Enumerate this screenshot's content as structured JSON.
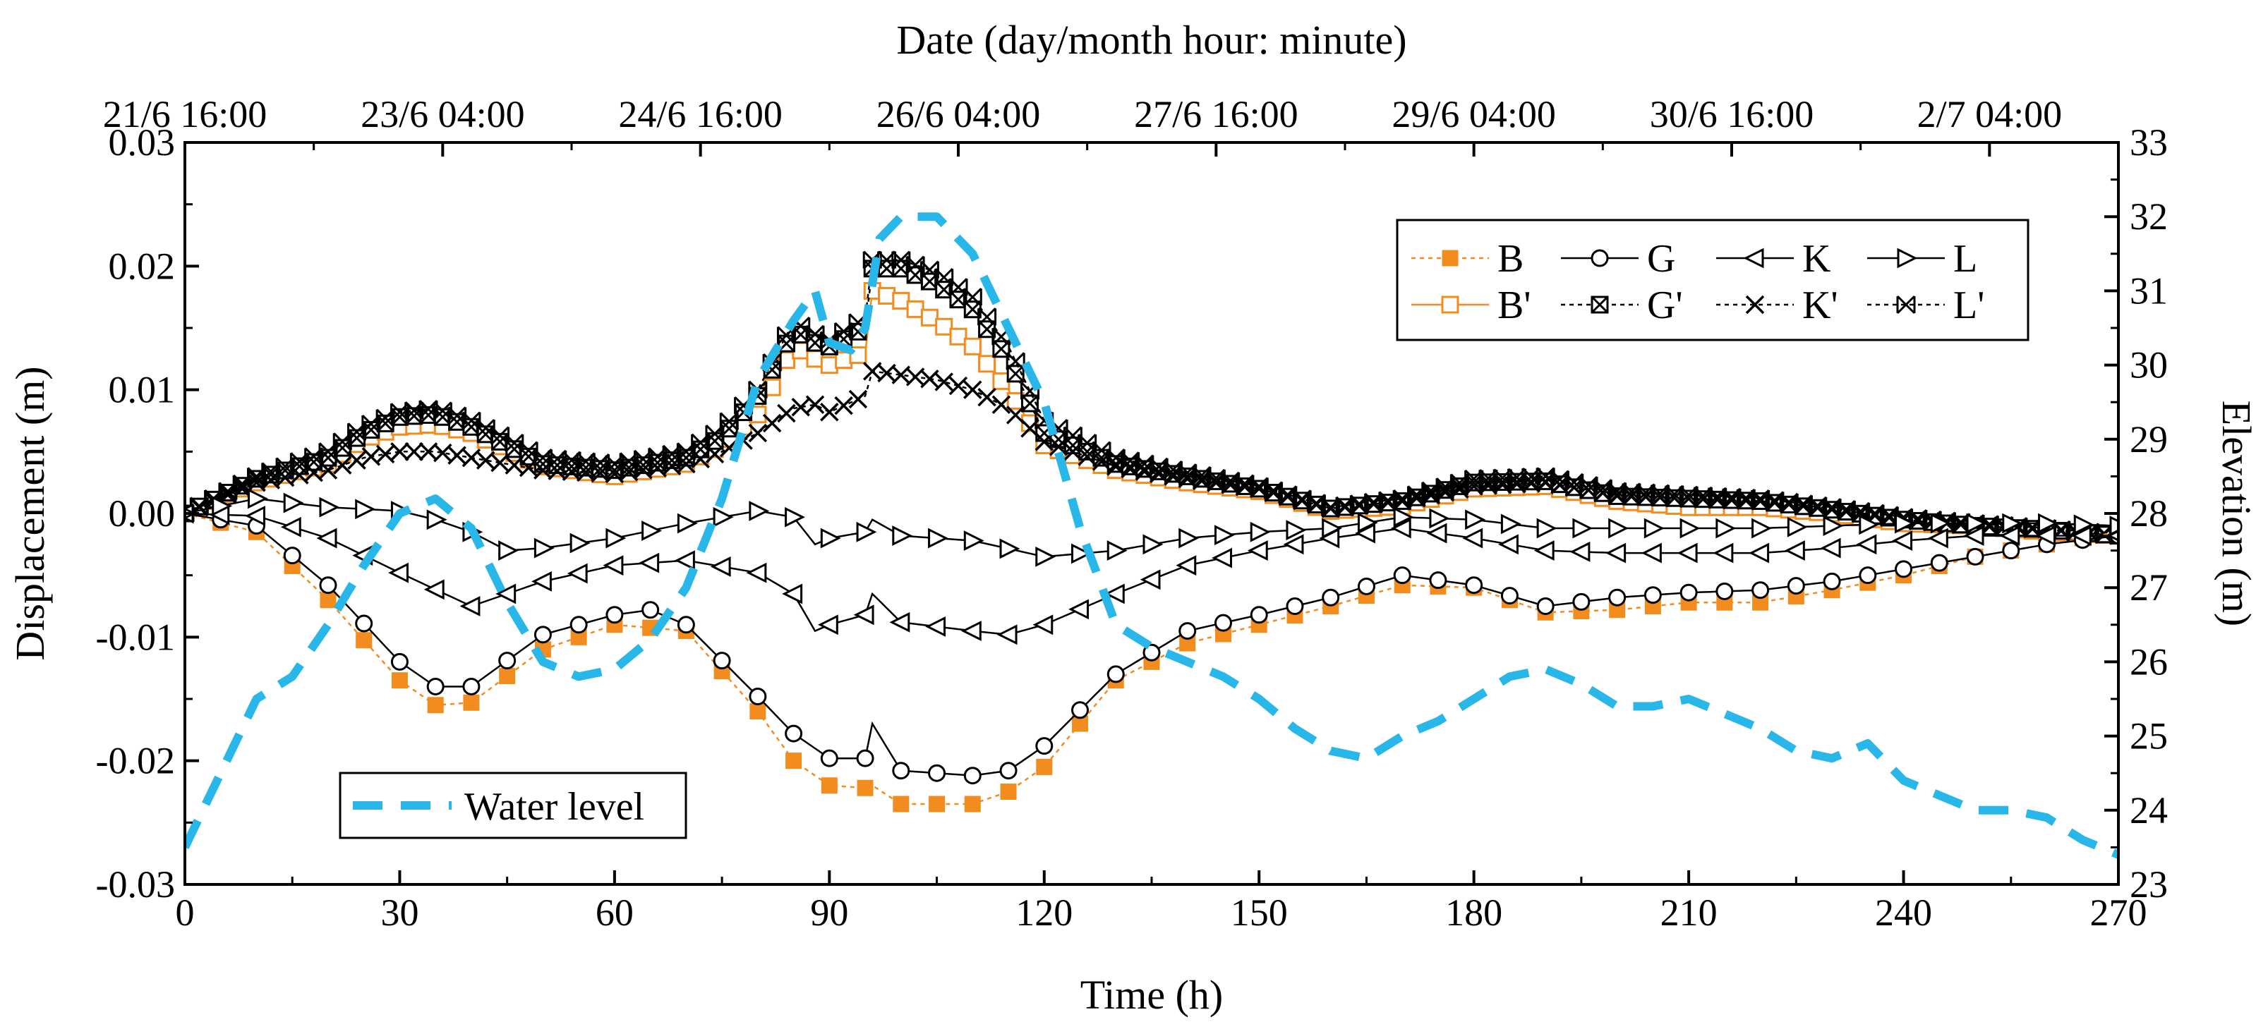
{
  "chart_data": {
    "type": "line",
    "title": "",
    "xlabel": "Time (h)",
    "ylabel": "Displacement (m)",
    "y2label": "Elevation (m)",
    "top_axis_title": "Date (day/month hour: minute)",
    "xlim": [
      0,
      270
    ],
    "ylim": [
      -0.03,
      0.03
    ],
    "y2lim": [
      23,
      33
    ],
    "x_ticks": [
      "0",
      "30",
      "60",
      "90",
      "120",
      "150",
      "180",
      "210",
      "240",
      "270"
    ],
    "y_ticks": [
      "-0.03",
      "-0.02",
      "-0.01",
      "0.00",
      "0.01",
      "0.02",
      "0.03"
    ],
    "y2_ticks": [
      "23",
      "24",
      "25",
      "26",
      "27",
      "28",
      "29",
      "30",
      "31",
      "32",
      "33"
    ],
    "top_ticks": [
      "21/6 16:00",
      "23/6 04:00",
      "24/6 16:00",
      "26/6 04:00",
      "27/6 16:00",
      "29/6 04:00",
      "30/6 16:00",
      "2/7 04:00"
    ],
    "grid": false,
    "legend_main": {
      "position": "top-right",
      "entries": [
        "B",
        "G",
        "K",
        "L",
        "B'",
        "G'",
        "K'",
        "L'"
      ]
    },
    "legend_water": {
      "position": "bottom-left",
      "entries": [
        "Water level"
      ]
    },
    "colors": {
      "orange": "#f28c1e",
      "black": "#000000",
      "water": "#29b6e8"
    },
    "series": [
      {
        "name": "B",
        "axis": "left",
        "x": [
          0,
          10,
          20,
          30,
          35,
          40,
          50,
          60,
          70,
          80,
          85,
          90,
          95,
          96,
          100,
          110,
          115,
          120,
          130,
          140,
          150,
          160,
          170,
          180,
          190,
          200,
          210,
          220,
          230,
          240,
          250,
          260,
          270
        ],
        "y": [
          0,
          -0.0015,
          -0.007,
          -0.0135,
          -0.0155,
          -0.0153,
          -0.011,
          -0.009,
          -0.0095,
          -0.016,
          -0.02,
          -0.022,
          -0.0222,
          -0.022,
          -0.0235,
          -0.0235,
          -0.0225,
          -0.0205,
          -0.0135,
          -0.0105,
          -0.009,
          -0.0075,
          -0.0058,
          -0.006,
          -0.008,
          -0.0078,
          -0.0072,
          -0.0072,
          -0.0062,
          -0.005,
          -0.0035,
          -0.0025,
          -0.0015
        ]
      },
      {
        "name": "G",
        "axis": "left",
        "x": [
          0,
          10,
          20,
          30,
          35,
          40,
          50,
          60,
          65,
          70,
          80,
          85,
          90,
          95,
          96,
          100,
          110,
          115,
          120,
          130,
          140,
          150,
          160,
          170,
          180,
          190,
          200,
          210,
          220,
          230,
          240,
          250,
          260,
          270
        ],
        "y": [
          0,
          -0.001,
          -0.0058,
          -0.012,
          -0.014,
          -0.014,
          -0.0098,
          -0.0082,
          -0.0078,
          -0.009,
          -0.0148,
          -0.0178,
          -0.0198,
          -0.0198,
          -0.017,
          -0.0208,
          -0.0212,
          -0.0208,
          -0.0188,
          -0.013,
          -0.0095,
          -0.0082,
          -0.0068,
          -0.005,
          -0.0058,
          -0.0075,
          -0.0068,
          -0.0064,
          -0.0062,
          -0.0055,
          -0.0045,
          -0.0035,
          -0.0025,
          -0.0018
        ]
      },
      {
        "name": "K",
        "axis": "left",
        "x": [
          0,
          10,
          20,
          30,
          40,
          50,
          60,
          70,
          80,
          85,
          88,
          90,
          95,
          96,
          100,
          110,
          115,
          120,
          130,
          140,
          150,
          160,
          170,
          180,
          190,
          200,
          210,
          220,
          230,
          240,
          250,
          260,
          270
        ],
        "y": [
          0,
          -0.0002,
          -0.002,
          -0.0048,
          -0.0075,
          -0.0055,
          -0.0042,
          -0.0038,
          -0.0048,
          -0.0065,
          -0.0095,
          -0.009,
          -0.0082,
          -0.0065,
          -0.0088,
          -0.0095,
          -0.0098,
          -0.009,
          -0.0065,
          -0.0042,
          -0.003,
          -0.002,
          -0.0012,
          -0.002,
          -0.003,
          -0.0032,
          -0.0032,
          -0.0032,
          -0.0028,
          -0.0022,
          -0.0018,
          -0.0018,
          -0.0018
        ]
      },
      {
        "name": "L",
        "axis": "left",
        "x": [
          0,
          10,
          20,
          30,
          35,
          40,
          45,
          50,
          60,
          70,
          80,
          85,
          88,
          90,
          95,
          96,
          100,
          110,
          120,
          130,
          140,
          150,
          160,
          170,
          180,
          190,
          200,
          210,
          220,
          230,
          240,
          250,
          260,
          270
        ],
        "y": [
          0,
          0.0012,
          0.0005,
          0.0002,
          -0.0005,
          -0.0015,
          -0.003,
          -0.0028,
          -0.002,
          -0.0008,
          0.0002,
          -0.0003,
          -0.0025,
          -0.002,
          -0.0015,
          -0.0005,
          -0.0018,
          -0.0022,
          -0.0035,
          -0.003,
          -0.002,
          -0.0015,
          -0.0012,
          -0.0003,
          -0.0005,
          -0.0012,
          -0.0012,
          -0.0012,
          -0.0012,
          -0.001,
          -0.0008,
          -0.0008,
          -0.0008,
          -0.001
        ]
      },
      {
        "name": "B'",
        "axis": "left",
        "x": [
          0,
          10,
          20,
          25,
          30,
          35,
          40,
          50,
          60,
          70,
          75,
          80,
          85,
          88,
          90,
          95,
          96,
          100,
          105,
          110,
          115,
          120,
          130,
          140,
          150,
          160,
          170,
          180,
          190,
          200,
          210,
          220,
          230,
          240,
          250,
          260,
          270
        ],
        "y": [
          0,
          0.0025,
          0.004,
          0.006,
          0.007,
          0.0072,
          0.0065,
          0.0038,
          0.003,
          0.004,
          0.0055,
          0.008,
          0.0135,
          0.0125,
          0.012,
          0.013,
          0.018,
          0.0172,
          0.0155,
          0.0135,
          0.01,
          0.0055,
          0.0035,
          0.0025,
          0.0018,
          0.0002,
          0.0006,
          0.002,
          0.0022,
          0.001,
          0.0005,
          0.0005,
          0.0,
          -0.0008,
          -0.001,
          -0.0015,
          -0.0018
        ]
      },
      {
        "name": "G'",
        "axis": "left",
        "x": [
          0,
          10,
          20,
          25,
          30,
          35,
          40,
          50,
          60,
          70,
          75,
          80,
          85,
          88,
          90,
          95,
          96,
          100,
          105,
          110,
          115,
          120,
          130,
          140,
          150,
          160,
          170,
          180,
          190,
          200,
          210,
          220,
          230,
          240,
          250,
          260,
          270
        ],
        "y": [
          0,
          0.0028,
          0.0045,
          0.0065,
          0.0078,
          0.008,
          0.007,
          0.004,
          0.0035,
          0.0045,
          0.0062,
          0.0095,
          0.0148,
          0.0138,
          0.0135,
          0.015,
          0.0198,
          0.0198,
          0.0185,
          0.0165,
          0.0125,
          0.0065,
          0.004,
          0.003,
          0.002,
          0.0004,
          0.001,
          0.0025,
          0.0026,
          0.0014,
          0.0012,
          0.001,
          0.0003,
          -0.0005,
          -0.001,
          -0.0013,
          -0.0018
        ]
      },
      {
        "name": "K'",
        "axis": "left",
        "x": [
          0,
          10,
          20,
          25,
          30,
          35,
          40,
          50,
          60,
          70,
          75,
          80,
          85,
          88,
          90,
          95,
          96,
          100,
          105,
          110,
          115,
          120,
          130,
          140,
          150,
          160,
          170,
          180,
          190,
          200,
          210,
          220,
          230,
          240,
          250,
          260,
          270
        ],
        "y": [
          0,
          0.0025,
          0.0035,
          0.0045,
          0.005,
          0.005,
          0.0045,
          0.0035,
          0.0032,
          0.004,
          0.005,
          0.0065,
          0.0085,
          0.0088,
          0.0082,
          0.0095,
          0.0115,
          0.0112,
          0.0108,
          0.01,
          0.0085,
          0.0058,
          0.0038,
          0.0028,
          0.002,
          0.0004,
          0.001,
          0.0022,
          0.0025,
          0.0015,
          0.0012,
          0.001,
          0.0004,
          -0.0005,
          -0.001,
          -0.0013,
          -0.0018
        ]
      },
      {
        "name": "L'",
        "axis": "left",
        "x": [
          0,
          10,
          20,
          25,
          30,
          35,
          40,
          50,
          60,
          70,
          75,
          80,
          85,
          88,
          90,
          95,
          96,
          100,
          105,
          110,
          115,
          120,
          130,
          140,
          150,
          160,
          170,
          180,
          190,
          200,
          210,
          220,
          230,
          240,
          250,
          260,
          270
        ],
        "y": [
          0,
          0.003,
          0.005,
          0.007,
          0.0082,
          0.0085,
          0.0075,
          0.0045,
          0.004,
          0.005,
          0.0068,
          0.01,
          0.0155,
          0.0145,
          0.014,
          0.0158,
          0.0205,
          0.0205,
          0.0195,
          0.0175,
          0.0135,
          0.0075,
          0.0045,
          0.0033,
          0.0022,
          0.0005,
          0.0012,
          0.0028,
          0.003,
          0.0018,
          0.0015,
          0.0012,
          0.0005,
          -0.0003,
          -0.0008,
          -0.0012,
          -0.0017
        ]
      },
      {
        "name": "Water level",
        "axis": "right",
        "x": [
          0,
          5,
          10,
          15,
          20,
          25,
          30,
          35,
          40,
          45,
          50,
          55,
          60,
          65,
          70,
          75,
          80,
          85,
          88,
          90,
          93,
          95,
          97,
          100,
          105,
          110,
          115,
          120,
          125,
          130,
          135,
          140,
          145,
          150,
          155,
          160,
          165,
          170,
          175,
          180,
          185,
          190,
          195,
          200,
          205,
          210,
          215,
          220,
          225,
          230,
          235,
          240,
          245,
          250,
          255,
          260,
          265,
          270
        ],
        "y": [
          23.5,
          24.5,
          25.5,
          25.8,
          26.5,
          27.3,
          28.0,
          28.2,
          27.8,
          26.8,
          26.0,
          25.8,
          25.9,
          26.3,
          27.0,
          28.2,
          29.8,
          30.6,
          31.0,
          30.3,
          30.2,
          30.5,
          31.7,
          32.0,
          32.0,
          31.5,
          30.5,
          29.5,
          27.8,
          26.5,
          26.2,
          26.0,
          25.8,
          25.5,
          25.1,
          24.8,
          24.7,
          25.0,
          25.2,
          25.5,
          25.8,
          25.9,
          25.7,
          25.4,
          25.4,
          25.5,
          25.3,
          25.1,
          24.8,
          24.7,
          24.9,
          24.4,
          24.2,
          24.0,
          24.0,
          23.9,
          23.6,
          23.4
        ]
      }
    ]
  }
}
